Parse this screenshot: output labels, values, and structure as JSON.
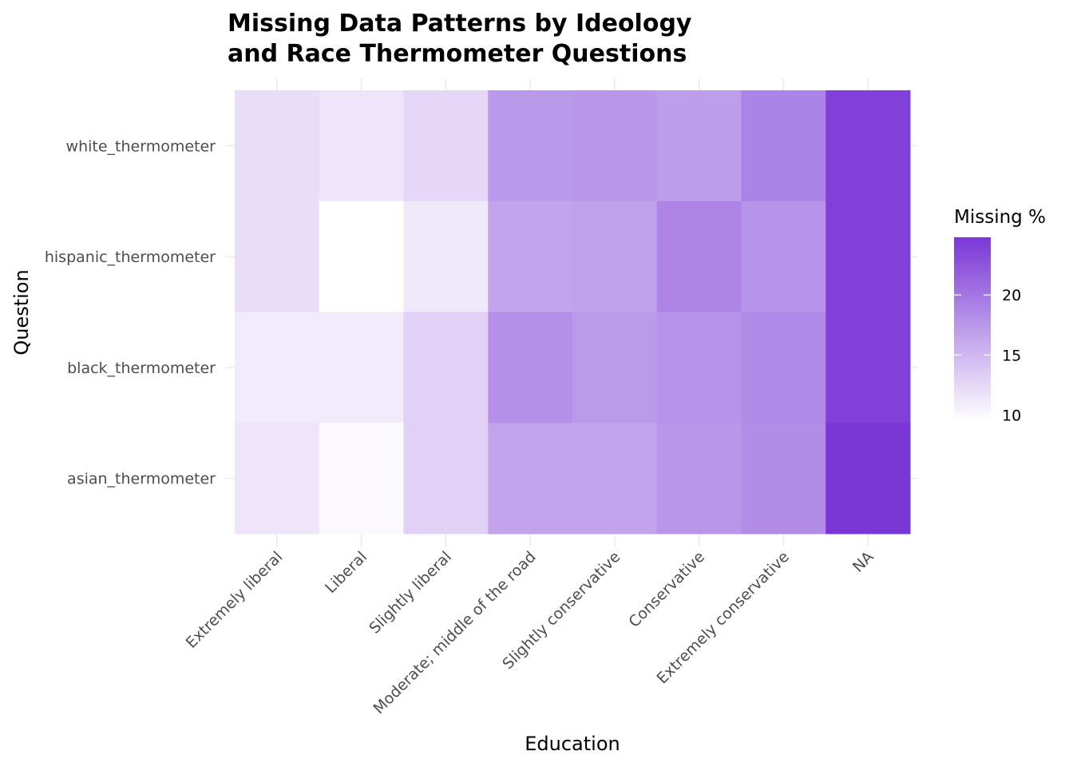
{
  "chart_data": {
    "type": "heatmap",
    "title_lines": [
      "Missing Data Patterns by Ideology",
      "and Race Thermometer Questions"
    ],
    "xlabel": "Education",
    "ylabel": "Question",
    "x_categories": [
      "Extremely liberal",
      "Liberal",
      "Slightly liberal",
      "Moderate; middle of the road",
      "Slightly conservative",
      "Conservative",
      "Extremely conservative",
      "NA"
    ],
    "y_categories": [
      "white_thermometer",
      "hispanic_thermometer",
      "black_thermometer",
      "asian_thermometer"
    ],
    "values": [
      [
        12.0,
        11.5,
        12.5,
        17.3,
        17.5,
        17.0,
        19.0,
        24.0
      ],
      [
        12.0,
        9.5,
        11.2,
        16.5,
        16.8,
        18.8,
        17.8,
        24.0
      ],
      [
        11.0,
        11.0,
        13.0,
        18.0,
        17.2,
        17.8,
        18.5,
        24.0
      ],
      [
        11.5,
        10.0,
        13.0,
        16.5,
        16.5,
        17.5,
        18.3,
        24.8
      ]
    ],
    "grid": true,
    "legend": {
      "title": "Missing %",
      "position": "right",
      "ticks": [
        10,
        15,
        20
      ],
      "range": [
        9.5,
        24.8
      ],
      "color_low": "#ffffff",
      "color_high": "#7a37d6"
    }
  }
}
